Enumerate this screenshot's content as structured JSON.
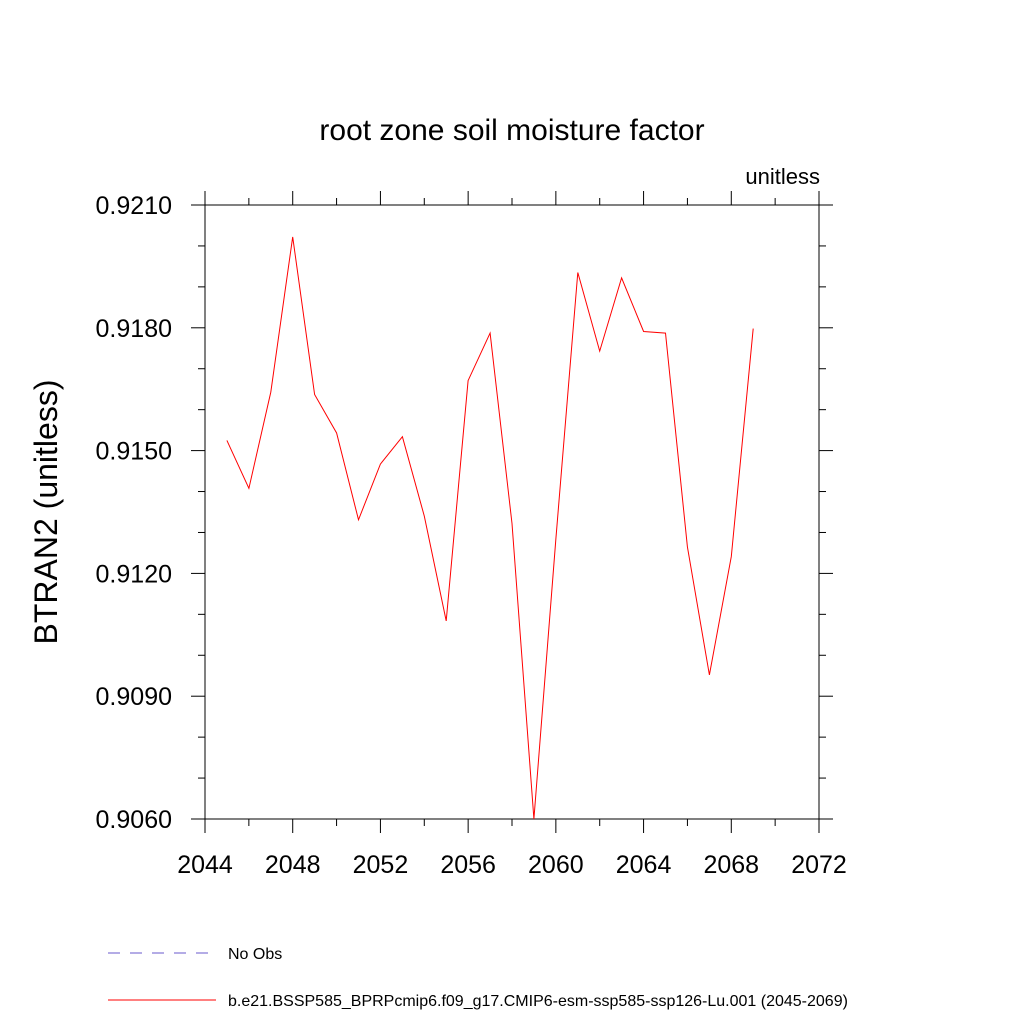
{
  "chart_data": {
    "type": "line",
    "title": "root zone soil moisture factor",
    "units_label": "unitless",
    "ylabel": "BTRAN2  (unitless)",
    "xlabel": "",
    "xlim": [
      2044,
      2072
    ],
    "ylim": [
      0.906,
      0.921
    ],
    "x_ticks": [
      2044,
      2048,
      2052,
      2056,
      2060,
      2064,
      2068,
      2072
    ],
    "x_minor_ticks": [
      2046,
      2050,
      2054,
      2058,
      2062,
      2066,
      2070
    ],
    "y_ticks": [
      "0.9060",
      "0.9090",
      "0.9120",
      "0.9150",
      "0.9180",
      "0.9210"
    ],
    "y_minor_ticks": [
      0.907,
      0.908,
      0.91,
      0.911,
      0.913,
      0.914,
      0.916,
      0.917,
      0.919,
      0.92
    ],
    "grid": false,
    "legend_position": "bottom",
    "series": [
      {
        "name": "b.e21.BSSP585_BPRPcmip6.f09_g17.CMIP6-esm-ssp585-ssp126-Lu.001 (2045-2069)",
        "color": "#ff0000",
        "style": "solid",
        "x": [
          2045,
          2046,
          2047,
          2048,
          2049,
          2050,
          2051,
          2052,
          2053,
          2054,
          2055,
          2056,
          2057,
          2058,
          2059,
          2060,
          2061,
          2062,
          2063,
          2064,
          2065,
          2066,
          2067,
          2068,
          2069
        ],
        "y": [
          0.91525,
          0.91408,
          0.91643,
          0.92022,
          0.91637,
          0.91543,
          0.91331,
          0.91467,
          0.91534,
          0.9134,
          0.91084,
          0.91671,
          0.91787,
          0.91322,
          0.906,
          0.91285,
          0.91935,
          0.91743,
          0.91922,
          0.91791,
          0.91787,
          0.91265,
          0.90952,
          0.91241,
          0.91798
        ]
      },
      {
        "name": "No Obs",
        "color": "#6a5acd",
        "style": "dashed",
        "x": [],
        "y": []
      }
    ]
  }
}
